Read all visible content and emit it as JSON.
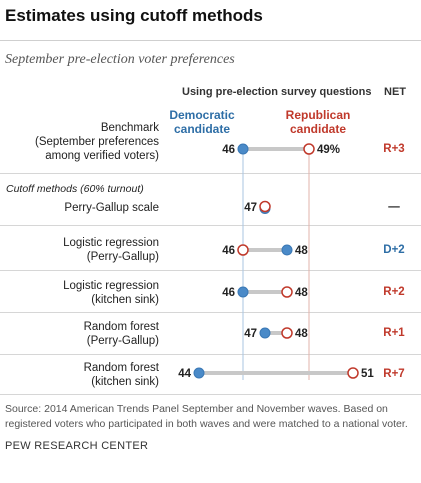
{
  "title": "Estimates using cutoff methods",
  "subtitle": "September pre-election voter preferences",
  "column_header": "Using pre-election survey questions",
  "net_header": "NET",
  "section_label": "Cutoff methods (60% turnout)",
  "source": "Source: 2014 American Trends Panel September and November waves. Based on registered voters who participated in both waves and were matched to a national voter.",
  "org": "PEW RESEARCH CENTER",
  "colors": {
    "democratic": "#4a8ac8",
    "republican": "#c0392b",
    "net_r": "#c0392b",
    "net_d": "#2e6ea6",
    "connector": "#c8c8c8"
  },
  "chart_data": {
    "type": "dot",
    "title": "Estimates using cutoff methods",
    "subtitle": "September pre-election voter preferences",
    "series": [
      {
        "name": "Democratic candidate",
        "label_lines": [
          "Democratic",
          "candidate"
        ],
        "marker": "filled-circle"
      },
      {
        "name": "Republican candidate",
        "label_lines": [
          "Republican",
          "candidate"
        ],
        "marker": "open-circle"
      }
    ],
    "xlim": [
      44,
      51
    ],
    "rows": [
      {
        "label_lines": [
          "Benchmark",
          "(September preferences",
          "among verified voters)"
        ],
        "dem": 46,
        "rep": 49,
        "dem_label": "46",
        "rep_label": "49%",
        "net": "R+3",
        "net_party": "R"
      },
      {
        "label_lines": [
          "Perry-Gallup scale"
        ],
        "dem": 47,
        "rep": 47,
        "dem_label": "47",
        "rep_label": "",
        "net": "—",
        "net_party": "none"
      },
      {
        "label_lines": [
          "Logistic regression",
          "(Perry-Gallup)"
        ],
        "dem": 48,
        "rep": 46,
        "dem_label": "48",
        "rep_label": "46",
        "net": "D+2",
        "net_party": "D"
      },
      {
        "label_lines": [
          "Logistic regression",
          "(kitchen sink)"
        ],
        "dem": 46,
        "rep": 48,
        "dem_label": "46",
        "rep_label": "48",
        "net": "R+2",
        "net_party": "R"
      },
      {
        "label_lines": [
          "Random forest",
          "(Perry-Gallup)"
        ],
        "dem": 47,
        "rep": 48,
        "dem_label": "47",
        "rep_label": "48",
        "net": "R+1",
        "net_party": "R"
      },
      {
        "label_lines": [
          "Random forest",
          "(kitchen sink)"
        ],
        "dem": 44,
        "rep": 51,
        "dem_label": "44",
        "rep_label": "51",
        "net": "R+7",
        "net_party": "R"
      }
    ]
  }
}
